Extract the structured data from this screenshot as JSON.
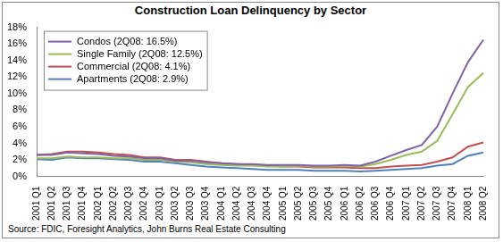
{
  "chart_data": {
    "type": "line",
    "title": "Construction Loan Delinquency by Sector",
    "source": "Source: FDIC, Foresight Analytics, John Burns Real Estate Consulting",
    "categories": [
      "2001 Q1",
      "2001 Q2",
      "2001 Q3",
      "2001 Q4",
      "2002 Q1",
      "2002 Q2",
      "2002 Q3",
      "2002 Q4",
      "2003 Q1",
      "2003 Q2",
      "2003 Q3",
      "2003 Q4",
      "2004 Q1",
      "2004 Q2",
      "2004 Q3",
      "2004 Q4",
      "2005 Q1",
      "2005 Q2",
      "2005 Q3",
      "2005 Q4",
      "2006 Q1",
      "2006 Q2",
      "2006 Q3",
      "2006 Q4",
      "2007 Q1",
      "2007 Q2",
      "2007 Q3",
      "2007 Q4",
      "2008 Q1",
      "2008 Q2"
    ],
    "series": [
      {
        "name": "Condos (2Q08: 16.5%)",
        "color": "#7f63a8",
        "values": [
          2.6,
          2.6,
          2.9,
          2.8,
          2.7,
          2.5,
          2.4,
          2.2,
          2.2,
          1.9,
          1.9,
          1.7,
          1.6,
          1.5,
          1.5,
          1.4,
          1.4,
          1.4,
          1.3,
          1.3,
          1.4,
          1.3,
          1.8,
          2.5,
          3.2,
          3.8,
          6.0,
          10.0,
          13.8,
          16.5
        ]
      },
      {
        "name": "Single Family (2Q08: 12.5%)",
        "color": "#9bbb59",
        "values": [
          2.2,
          2.2,
          2.4,
          2.3,
          2.3,
          2.2,
          2.2,
          2.0,
          2.0,
          1.8,
          1.7,
          1.5,
          1.4,
          1.3,
          1.3,
          1.2,
          1.2,
          1.3,
          1.2,
          1.2,
          1.3,
          1.2,
          1.5,
          2.0,
          2.6,
          3.0,
          4.3,
          7.5,
          10.8,
          12.5
        ]
      },
      {
        "name": "Commercial (2Q08: 4.1%)",
        "color": "#c0504d",
        "values": [
          2.6,
          2.7,
          3.0,
          3.0,
          2.9,
          2.7,
          2.6,
          2.3,
          2.3,
          2.0,
          2.0,
          1.8,
          1.6,
          1.5,
          1.4,
          1.3,
          1.2,
          1.2,
          1.1,
          1.1,
          1.1,
          1.0,
          1.0,
          1.2,
          1.3,
          1.4,
          1.8,
          2.3,
          3.6,
          4.1
        ]
      },
      {
        "name": "Apartments (2Q08: 2.9%)",
        "color": "#4f81bd",
        "values": [
          2.1,
          2.0,
          2.3,
          2.2,
          2.2,
          2.1,
          2.0,
          1.8,
          1.8,
          1.6,
          1.4,
          1.2,
          1.1,
          1.0,
          0.9,
          0.8,
          0.8,
          0.8,
          0.7,
          0.7,
          0.7,
          0.6,
          0.7,
          0.8,
          0.9,
          1.0,
          1.3,
          1.5,
          2.5,
          2.9
        ]
      }
    ],
    "ylim": [
      0,
      18
    ],
    "yticks": [
      {
        "value": 0,
        "label": "0%"
      },
      {
        "value": 2,
        "label": "2%"
      },
      {
        "value": 4,
        "label": "4%"
      },
      {
        "value": 6,
        "label": "6%"
      },
      {
        "value": 8,
        "label": "8%"
      },
      {
        "value": 10,
        "label": "10%"
      },
      {
        "value": 12,
        "label": "12%"
      },
      {
        "value": 14,
        "label": "14%"
      },
      {
        "value": 16,
        "label": "16%"
      },
      {
        "value": 18,
        "label": "18%"
      }
    ],
    "grid": false,
    "legend": "upper left"
  }
}
